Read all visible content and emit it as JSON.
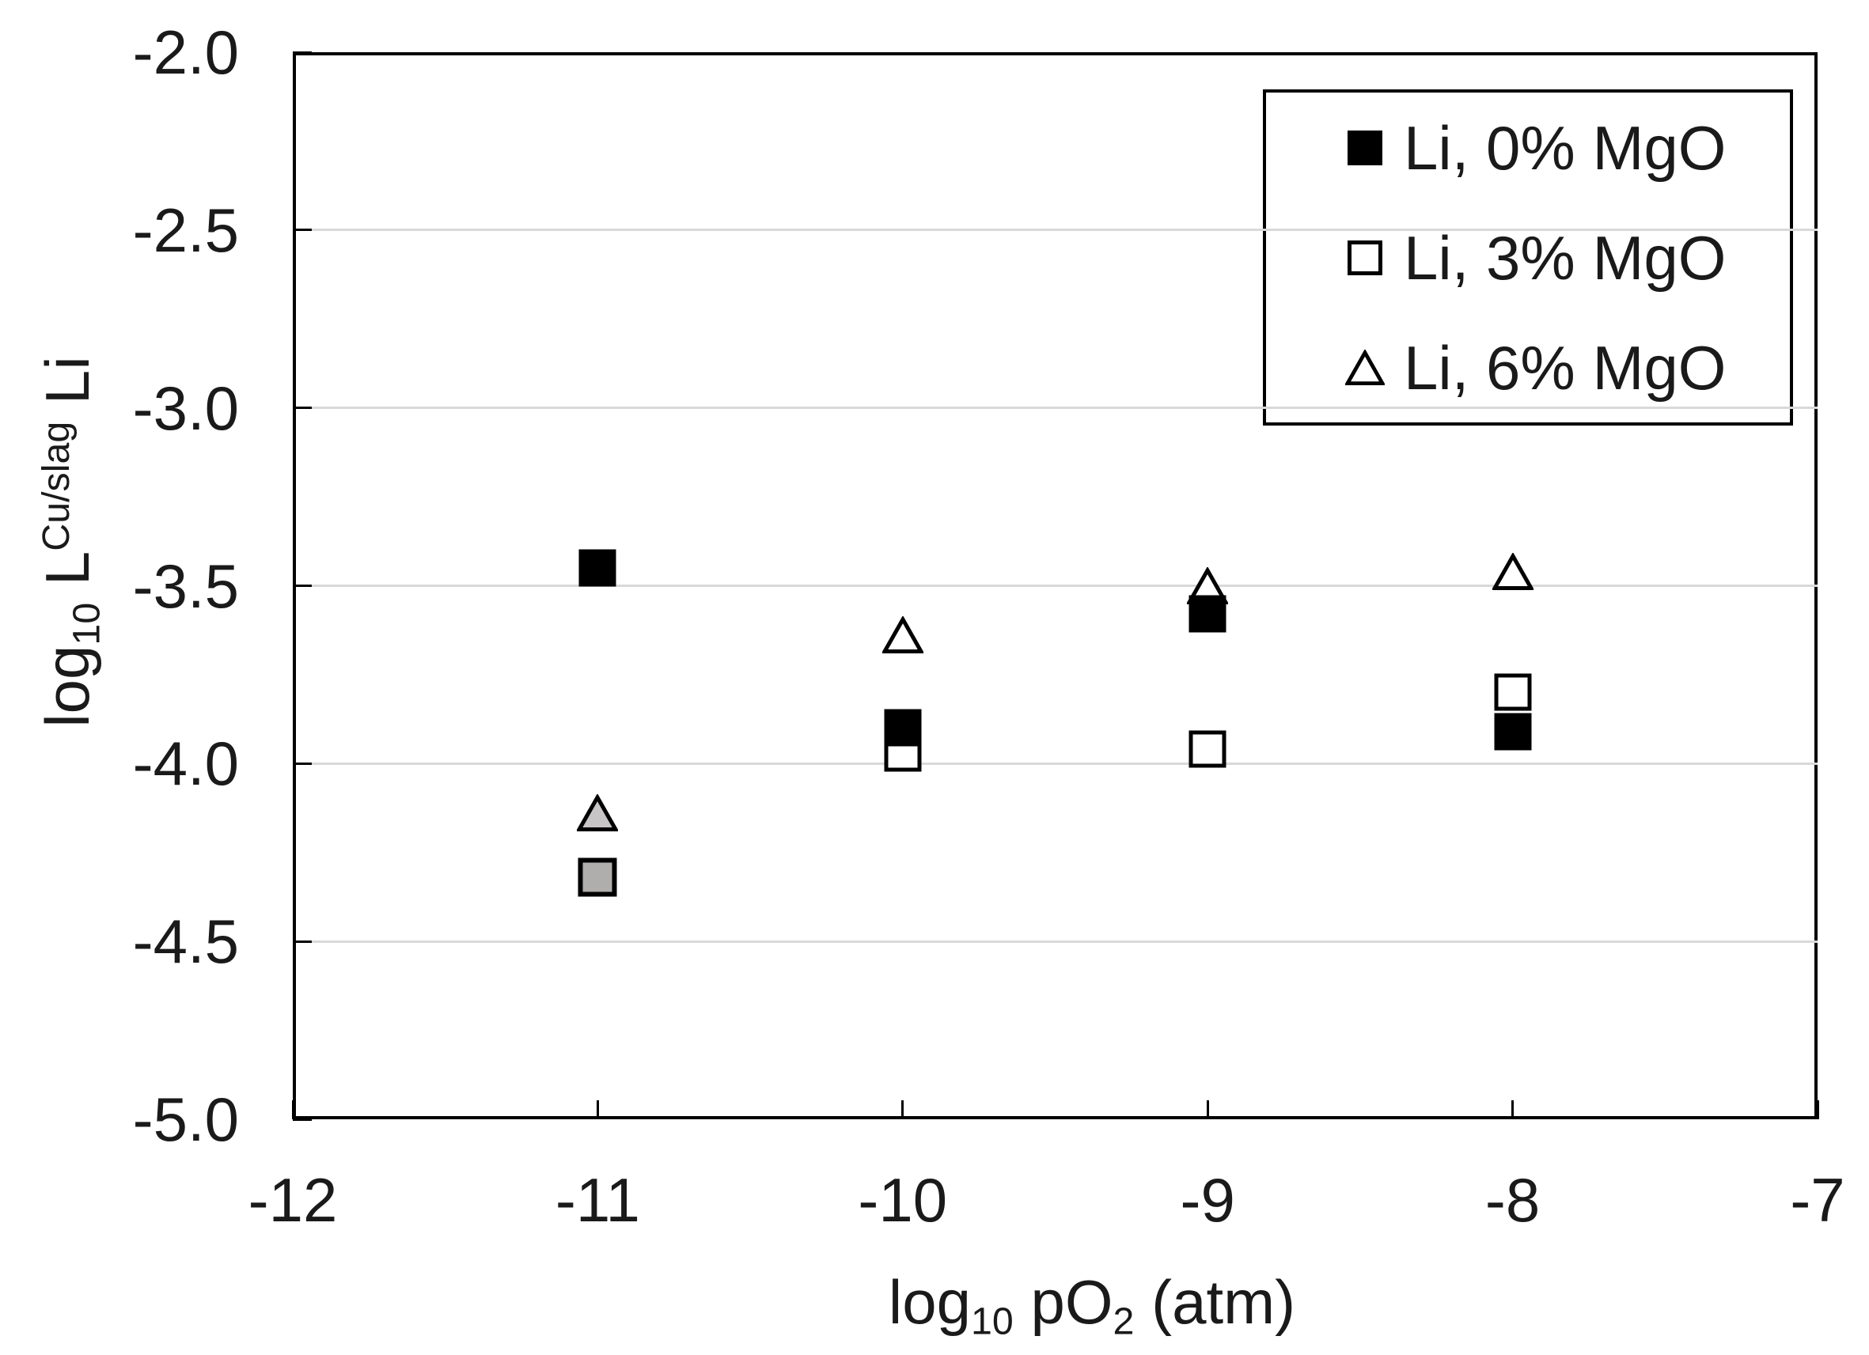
{
  "chart_data": {
    "type": "scatter",
    "title": "",
    "xlabel": "log10 pO2 (atm)",
    "ylabel": "log10 L^(Cu/slag) Li",
    "xlabel_parts": {
      "p1": "log",
      "sub1": "10",
      "p2": " pO",
      "sub2": "2",
      "p3": " (atm)"
    },
    "ylabel_parts": {
      "p1": "log",
      "sub1": "10",
      "p2": " L",
      "sup1": "Cu/slag",
      "p3": " Li"
    },
    "xlim": [
      -12,
      -7
    ],
    "ylim": [
      -5,
      -2
    ],
    "x_ticks": [
      {
        "value": -12,
        "label": "-12"
      },
      {
        "value": -11,
        "label": "-11"
      },
      {
        "value": -10,
        "label": "-10"
      },
      {
        "value": -9,
        "label": "-9"
      },
      {
        "value": -8,
        "label": "-8"
      },
      {
        "value": -7,
        "label": "-7"
      }
    ],
    "y_ticks": [
      {
        "value": -2,
        "label": "-2.0"
      },
      {
        "value": -2.5,
        "label": "-2.5"
      },
      {
        "value": -3,
        "label": "-3.0"
      },
      {
        "value": -3.5,
        "label": "-3.5"
      },
      {
        "value": -4,
        "label": "-4.0"
      },
      {
        "value": -4.5,
        "label": "-4.5"
      },
      {
        "value": -5,
        "label": "-5.0"
      }
    ],
    "grid": "horizontal-only",
    "legend_position": "top-right-inside",
    "series": [
      {
        "name": "Li, 0% MgO",
        "marker": "square",
        "points": [
          {
            "x": -11,
            "y": -3.45,
            "fill": "black"
          },
          {
            "x": -10,
            "y": -3.9,
            "fill": "black"
          },
          {
            "x": -9,
            "y": -3.58,
            "fill": "black"
          },
          {
            "x": -8,
            "y": -3.91,
            "fill": "black"
          }
        ]
      },
      {
        "name": "Li, 3% MgO",
        "marker": "square",
        "points": [
          {
            "x": -11,
            "y": -4.32,
            "fill": "gray"
          },
          {
            "x": -10,
            "y": -3.97,
            "fill": "white"
          },
          {
            "x": -9,
            "y": -3.96,
            "fill": "white"
          },
          {
            "x": -8,
            "y": -3.8,
            "fill": "white"
          }
        ]
      },
      {
        "name": "Li, 6% MgO",
        "marker": "triangle",
        "points": [
          {
            "x": -11,
            "y": -4.14,
            "fill": "gray"
          },
          {
            "x": -10,
            "y": -3.64,
            "fill": "white"
          },
          {
            "x": -9,
            "y": -3.5,
            "fill": "white"
          },
          {
            "x": -8,
            "y": -3.46,
            "fill": "white"
          }
        ]
      }
    ],
    "colors": {
      "marker_stroke": "#000000",
      "gray_square_fill": "#b0adad",
      "gray_triangle_fill": "#c7c5c5",
      "gridline": "#d9d9d9",
      "axis": "#000000",
      "background": "#ffffff",
      "text": "#1a1a1a"
    }
  },
  "legend": {
    "items": [
      {
        "label": "Li, 0% MgO",
        "marker": "filled-square"
      },
      {
        "label": "Li, 3% MgO",
        "marker": "open-square"
      },
      {
        "label": "Li, 6% MgO",
        "marker": "open-triangle"
      }
    ]
  }
}
